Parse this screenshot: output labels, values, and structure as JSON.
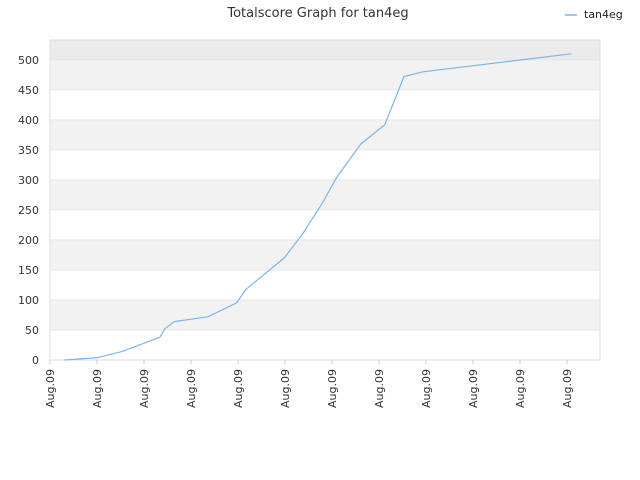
{
  "chart_data": {
    "type": "line",
    "title": "Totalscore Graph for tan4eg",
    "xlabel": "",
    "ylabel": "",
    "ylim": [
      0,
      533
    ],
    "yticks": [
      0,
      50,
      100,
      150,
      200,
      250,
      300,
      350,
      400,
      450,
      500
    ],
    "xticks": [
      "Aug.09",
      "Aug.09",
      "Aug.09",
      "Aug.09",
      "Aug.09",
      "Aug.09",
      "Aug.09",
      "Aug.09",
      "Aug.09",
      "Aug.09",
      "Aug.09",
      "Aug.09"
    ],
    "grid": true,
    "legend_position": "top-right",
    "series": [
      {
        "name": "tan4eg",
        "color": "#7cb5ec",
        "x": [
          0.3,
          1.0,
          1.5,
          2.3,
          2.4,
          2.6,
          3.3,
          3.9,
          4.1,
          4.9,
          5.3,
          5.4,
          5.7,
          6.0,
          6.5,
          7.0,
          7.4,
          7.6,
          7.8,
          10.9
        ],
        "y": [
          0,
          4,
          14,
          38,
          52,
          64,
          72,
          95,
          118,
          170,
          212,
          225,
          262,
          305,
          360,
          392,
          472,
          476,
          480,
          510
        ]
      }
    ]
  }
}
